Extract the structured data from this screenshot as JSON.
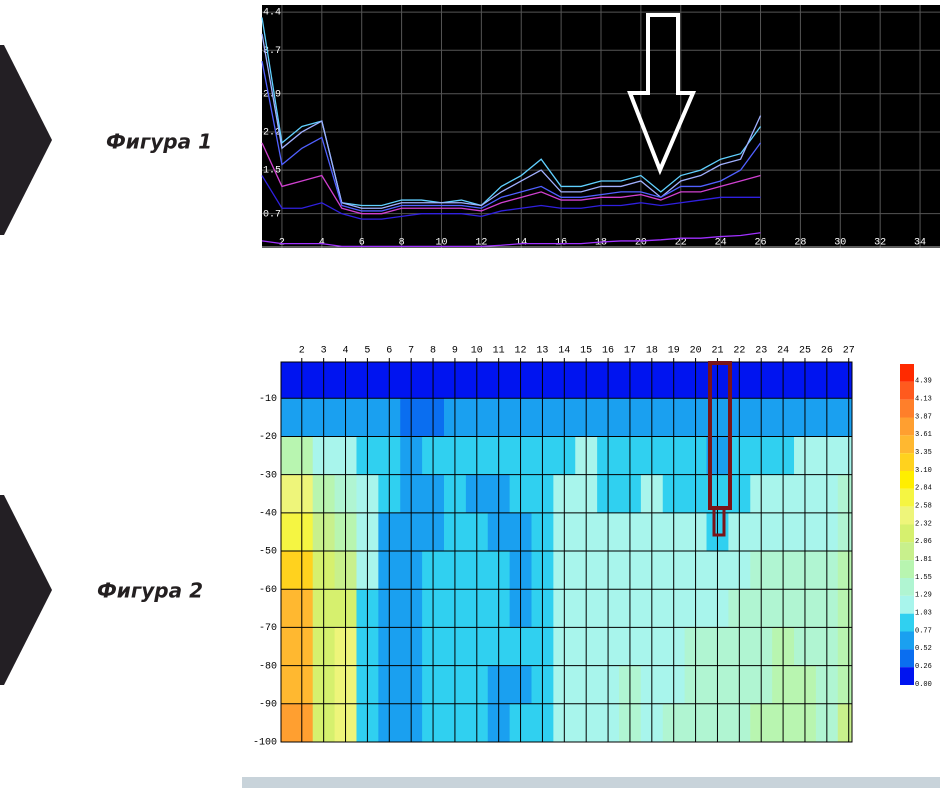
{
  "figures": [
    {
      "caption": "Фигура 1",
      "chart_data": {
        "type": "line",
        "x": [
          1,
          2,
          3,
          4,
          5,
          6,
          7,
          8,
          9,
          10,
          11,
          12,
          13,
          14,
          15,
          16,
          17,
          18,
          19,
          20,
          21,
          22,
          23,
          24,
          25,
          26
        ],
        "series": [
          {
            "color": "#60d0ff",
            "values": [
              4.3,
              2.0,
              2.3,
              2.4,
              0.9,
              0.85,
              0.85,
              0.95,
              0.95,
              0.9,
              0.95,
              0.85,
              1.2,
              1.4,
              1.7,
              1.2,
              1.2,
              1.3,
              1.3,
              1.4,
              1.1,
              1.4,
              1.5,
              1.7,
              1.8,
              2.3
            ]
          },
          {
            "color": "#a0b0ff",
            "values": [
              4.0,
              1.9,
              2.2,
              2.4,
              0.9,
              0.8,
              0.8,
              0.9,
              0.9,
              0.9,
              0.9,
              0.85,
              1.1,
              1.3,
              1.5,
              1.1,
              1.1,
              1.2,
              1.2,
              1.3,
              1.0,
              1.3,
              1.4,
              1.6,
              1.7,
              2.5
            ]
          },
          {
            "color": "#5060ff",
            "values": [
              3.5,
              1.6,
              1.9,
              2.1,
              0.85,
              0.75,
              0.75,
              0.85,
              0.85,
              0.85,
              0.85,
              0.8,
              1.0,
              1.1,
              1.2,
              1.0,
              1.0,
              1.05,
              1.1,
              1.1,
              1.0,
              1.2,
              1.2,
              1.3,
              1.5,
              2.0
            ]
          },
          {
            "color": "#d040d0",
            "values": [
              2.0,
              1.2,
              1.3,
              1.4,
              0.8,
              0.7,
              0.7,
              0.8,
              0.8,
              0.8,
              0.8,
              0.75,
              0.9,
              1.0,
              1.1,
              0.95,
              0.95,
              1.0,
              1.0,
              1.05,
              0.95,
              1.1,
              1.1,
              1.2,
              1.3,
              1.4
            ]
          },
          {
            "color": "#3020e0",
            "values": [
              1.4,
              0.8,
              0.8,
              0.9,
              0.7,
              0.6,
              0.6,
              0.65,
              0.7,
              0.7,
              0.7,
              0.65,
              0.75,
              0.8,
              0.85,
              0.8,
              0.8,
              0.85,
              0.85,
              0.9,
              0.85,
              0.9,
              0.95,
              1.0,
              1.0,
              1.0
            ]
          },
          {
            "color": "#a030ff",
            "values": [
              0.2,
              0.15,
              0.15,
              0.15,
              0.1,
              0.1,
              0.1,
              0.1,
              0.1,
              0.1,
              0.1,
              0.1,
              0.12,
              0.15,
              0.15,
              0.15,
              0.15,
              0.18,
              0.2,
              0.2,
              0.22,
              0.25,
              0.25,
              0.28,
              0.3,
              0.35
            ]
          }
        ],
        "xlim": [
          1,
          35
        ],
        "xticks": [
          2,
          4,
          6,
          8,
          10,
          12,
          14,
          16,
          18,
          20,
          22,
          24,
          26,
          28,
          30,
          32,
          34
        ],
        "ylim": [
          0.07,
          4.53
        ],
        "yticks": [
          4.4,
          3.7,
          2.9,
          2.2,
          1.5,
          0.7
        ],
        "grid": true,
        "background": "#000000"
      }
    },
    {
      "caption": "Фигура 2",
      "chart_data": {
        "type": "contour",
        "x": [
          2,
          3,
          4,
          5,
          6,
          7,
          8,
          9,
          10,
          11,
          12,
          13,
          14,
          15,
          16,
          17,
          18,
          19,
          20,
          21,
          22,
          23,
          24,
          25,
          26,
          27
        ],
        "depths": [
          -5,
          -15,
          -25,
          -35,
          -45,
          -55,
          -65,
          -75,
          -85,
          -95
        ],
        "values": [
          [
            0.1,
            0.1,
            0.1,
            0.1,
            0.1,
            0.1,
            0.1,
            0.1,
            0.1,
            0.1,
            0.1,
            0.1,
            0.1,
            0.1,
            0.1,
            0.1,
            0.1,
            0.1,
            0.1,
            0.1,
            0.1,
            0.1,
            0.1,
            0.1,
            0.1,
            0.1
          ],
          [
            0.6,
            0.6,
            0.6,
            0.6,
            0.55,
            0.5,
            0.5,
            0.55,
            0.6,
            0.6,
            0.6,
            0.6,
            0.6,
            0.55,
            0.6,
            0.6,
            0.6,
            0.6,
            0.6,
            0.6,
            0.6,
            0.6,
            0.6,
            0.6,
            0.6,
            0.6
          ],
          [
            1.6,
            1.2,
            1.1,
            1.0,
            0.8,
            0.6,
            0.8,
            0.85,
            0.9,
            0.8,
            0.8,
            0.9,
            1.0,
            1.1,
            0.95,
            0.9,
            0.85,
            0.8,
            0.8,
            0.75,
            0.9,
            1.0,
            1.0,
            1.05,
            1.05,
            1.1
          ],
          [
            2.4,
            1.8,
            1.5,
            1.1,
            0.8,
            0.7,
            0.75,
            0.8,
            0.75,
            0.75,
            0.8,
            0.9,
            1.1,
            1.1,
            0.95,
            1.0,
            1.05,
            1.0,
            1.0,
            0.95,
            1.0,
            1.05,
            1.1,
            1.1,
            1.15,
            1.3
          ],
          [
            2.8,
            2.0,
            1.8,
            1.1,
            0.75,
            0.75,
            0.75,
            0.8,
            0.8,
            0.75,
            0.75,
            0.9,
            1.1,
            1.1,
            1.05,
            1.1,
            1.1,
            1.05,
            1.1,
            1.0,
            1.05,
            1.1,
            1.2,
            1.2,
            1.2,
            1.5
          ],
          [
            3.2,
            2.1,
            2.0,
            1.05,
            0.75,
            0.75,
            0.8,
            0.8,
            0.8,
            0.8,
            0.75,
            0.9,
            1.05,
            1.1,
            1.1,
            1.15,
            1.2,
            1.15,
            1.2,
            1.15,
            1.25,
            1.3,
            1.35,
            1.3,
            1.3,
            1.6
          ],
          [
            3.4,
            2.2,
            2.2,
            1.0,
            0.75,
            0.75,
            0.8,
            0.85,
            0.85,
            0.8,
            0.7,
            0.95,
            1.1,
            1.15,
            1.15,
            1.2,
            1.2,
            1.2,
            1.25,
            1.25,
            1.3,
            1.4,
            1.5,
            1.4,
            1.35,
            1.7
          ],
          [
            3.5,
            2.2,
            2.4,
            1.0,
            0.75,
            0.75,
            0.85,
            0.9,
            0.9,
            0.85,
            0.8,
            1.0,
            1.1,
            1.2,
            1.2,
            1.25,
            1.15,
            1.25,
            1.3,
            1.3,
            1.35,
            1.5,
            1.6,
            1.5,
            1.4,
            1.8
          ],
          [
            3.6,
            2.2,
            2.5,
            0.95,
            0.75,
            0.75,
            0.85,
            0.9,
            0.9,
            0.7,
            0.7,
            1.0,
            1.15,
            1.2,
            1.2,
            1.3,
            1.2,
            1.25,
            1.3,
            1.35,
            1.4,
            1.5,
            1.6,
            1.55,
            1.4,
            1.8
          ],
          [
            3.7,
            2.2,
            2.5,
            0.95,
            0.75,
            0.75,
            0.9,
            0.9,
            0.9,
            0.75,
            0.8,
            1.0,
            1.2,
            1.25,
            1.25,
            1.3,
            1.2,
            1.3,
            1.3,
            1.4,
            1.45,
            1.55,
            1.65,
            1.6,
            1.45,
            1.9
          ]
        ],
        "xlim": [
          1.05,
          27.15
        ],
        "xticks": [
          2,
          3,
          4,
          5,
          6,
          7,
          8,
          9,
          10,
          11,
          12,
          13,
          14,
          15,
          16,
          17,
          18,
          19,
          20,
          21,
          22,
          23,
          24,
          25,
          26,
          27
        ],
        "ylim": [
          -100,
          -0.5
        ],
        "yticks": [
          -10,
          -20,
          -30,
          -40,
          -50,
          -60,
          -70,
          -80,
          -90,
          -100
        ],
        "grid": true,
        "levels": [
          4.39,
          4.13,
          3.87,
          3.61,
          3.35,
          {
            "value": 3.1,
            "label": "3.10"
          },
          2.84,
          2.58,
          2.32,
          2.06,
          1.81,
          1.55,
          1.29,
          1.03,
          0.77,
          0.52,
          0.26,
          {
            "value": 0,
            "label": "0.00"
          }
        ],
        "colors": [
          "#ff2a00",
          "#ff5a1e",
          "#ff7f2a",
          "#ff9f30",
          "#ffb830",
          "#ffd21e",
          "#ffee00",
          "#f5f542",
          "#eef57a",
          "#d6f06e",
          "#c8f08c",
          "#b8f5b0",
          "#b0f5d2",
          "#a8f5ec",
          "#30d0f0",
          "#1aa0f0",
          "#0a6ef0",
          "#0014f0"
        ]
      }
    }
  ]
}
